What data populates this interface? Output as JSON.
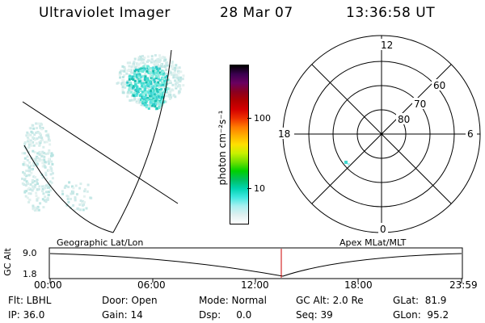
{
  "header": {
    "instrument": "Ultraviolet Imager",
    "date": "28 Mar 07",
    "time": "13:36:58 UT"
  },
  "colorbar": {
    "label": "photon cm⁻²s⁻¹",
    "ticks": [
      "100",
      "10"
    ],
    "colors": [
      "#000000",
      "#3a0050",
      "#6a0060",
      "#8a0020",
      "#b00000",
      "#d40000",
      "#ee3000",
      "#ff7a00",
      "#ffb000",
      "#ffe000",
      "#c8f000",
      "#70e000",
      "#00d000",
      "#00c060",
      "#00d4b0",
      "#40e8e0",
      "#a8f0f0",
      "#dff0f0",
      "#ffffff"
    ]
  },
  "polar_plot": {
    "mlt_labels": {
      "top": "12",
      "left": "18",
      "right": "6",
      "bottom": "0"
    },
    "lat_labels": [
      "60",
      "70",
      "80"
    ]
  },
  "timeline": {
    "y_axis_label": "GC Alt",
    "y_ticks": [
      "9.0",
      "1.8"
    ],
    "left_title": "Geographic Lat/Lon",
    "right_title": "Apex MLat/MLT",
    "x_ticks": [
      "00:00",
      "06:00",
      "12:00",
      "18:00",
      "23:59"
    ],
    "marker_color": "#cc0000"
  },
  "info": {
    "flt": "Flt: LBHL",
    "ip": "IP: 36.0",
    "door": "Door: Open",
    "gain": "Gain: 14",
    "mode": "Mode: Normal",
    "dsp": "Dsp:     0.0",
    "gcalt": "GC Alt: 2.0 Re",
    "seq": "Seq: 39",
    "glat": "GLat:  81.9",
    "glon": "GLon:  95.2"
  }
}
